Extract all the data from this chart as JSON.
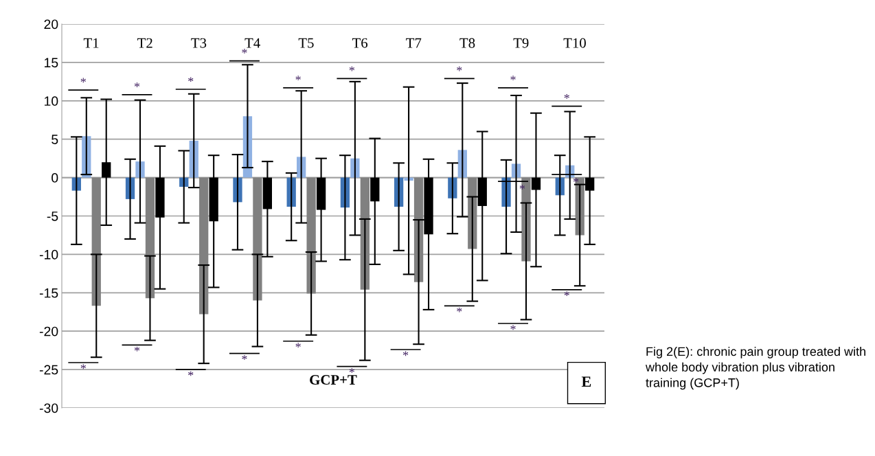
{
  "chart_data": {
    "type": "bar",
    "categories": [
      "T1",
      "T2",
      "T3",
      "T4",
      "T5",
      "T6",
      "T7",
      "T8",
      "T9",
      "T10"
    ],
    "series": [
      {
        "color": "#3d73b5",
        "values": [
          -1.7,
          -2.8,
          -1.2,
          -3.2,
          -3.8,
          -3.9,
          -3.8,
          -2.7,
          -3.8,
          -2.3
        ],
        "errors": [
          7,
          5.2,
          4.7,
          6.2,
          4.4,
          6.8,
          5.7,
          4.6,
          6.1,
          5.2
        ]
      },
      {
        "color": "#8fb1e3",
        "values": [
          5.4,
          2.1,
          4.8,
          8.0,
          2.7,
          2.5,
          -0.4,
          3.6,
          1.8,
          1.6
        ],
        "errors": [
          5,
          8,
          6.1,
          6.7,
          8.6,
          10,
          12.2,
          8.7,
          8.9,
          7
        ]
      },
      {
        "color": "#808080",
        "values": [
          -16.7,
          -15.7,
          -17.8,
          -16.0,
          -15.1,
          -14.6,
          -13.6,
          -9.3,
          -10.9,
          -7.5
        ],
        "errors": [
          6.7,
          5.5,
          6.4,
          6,
          5.4,
          9.2,
          8.1,
          6.8,
          7.6,
          6.6
        ]
      },
      {
        "color": "#000000",
        "values": [
          2.0,
          -5.2,
          -5.7,
          -4.1,
          -4.2,
          -3.1,
          -7.4,
          -3.7,
          -1.6,
          -1.7
        ],
        "errors": [
          8.2,
          9.3,
          8.6,
          6.2,
          6.7,
          8.2,
          9.8,
          9.7,
          10,
          7
        ]
      }
    ],
    "ylim": [
      -30,
      20
    ],
    "yticks": [
      -30,
      -25,
      -20,
      -15,
      -10,
      -5,
      0,
      5,
      10,
      15,
      20
    ],
    "grid": "y",
    "annotations": [
      "*",
      "*",
      "*",
      "*",
      "*",
      "*",
      "*",
      "*",
      "*",
      "*",
      "*",
      "*",
      "*",
      "*",
      "*",
      "*",
      "*",
      "*",
      "*",
      "*",
      "*",
      "GCP+T",
      "E",
      "Fig 2(E): chronic pain group treated with whole body vibration plus vibration training (GCP+T)"
    ]
  }
}
